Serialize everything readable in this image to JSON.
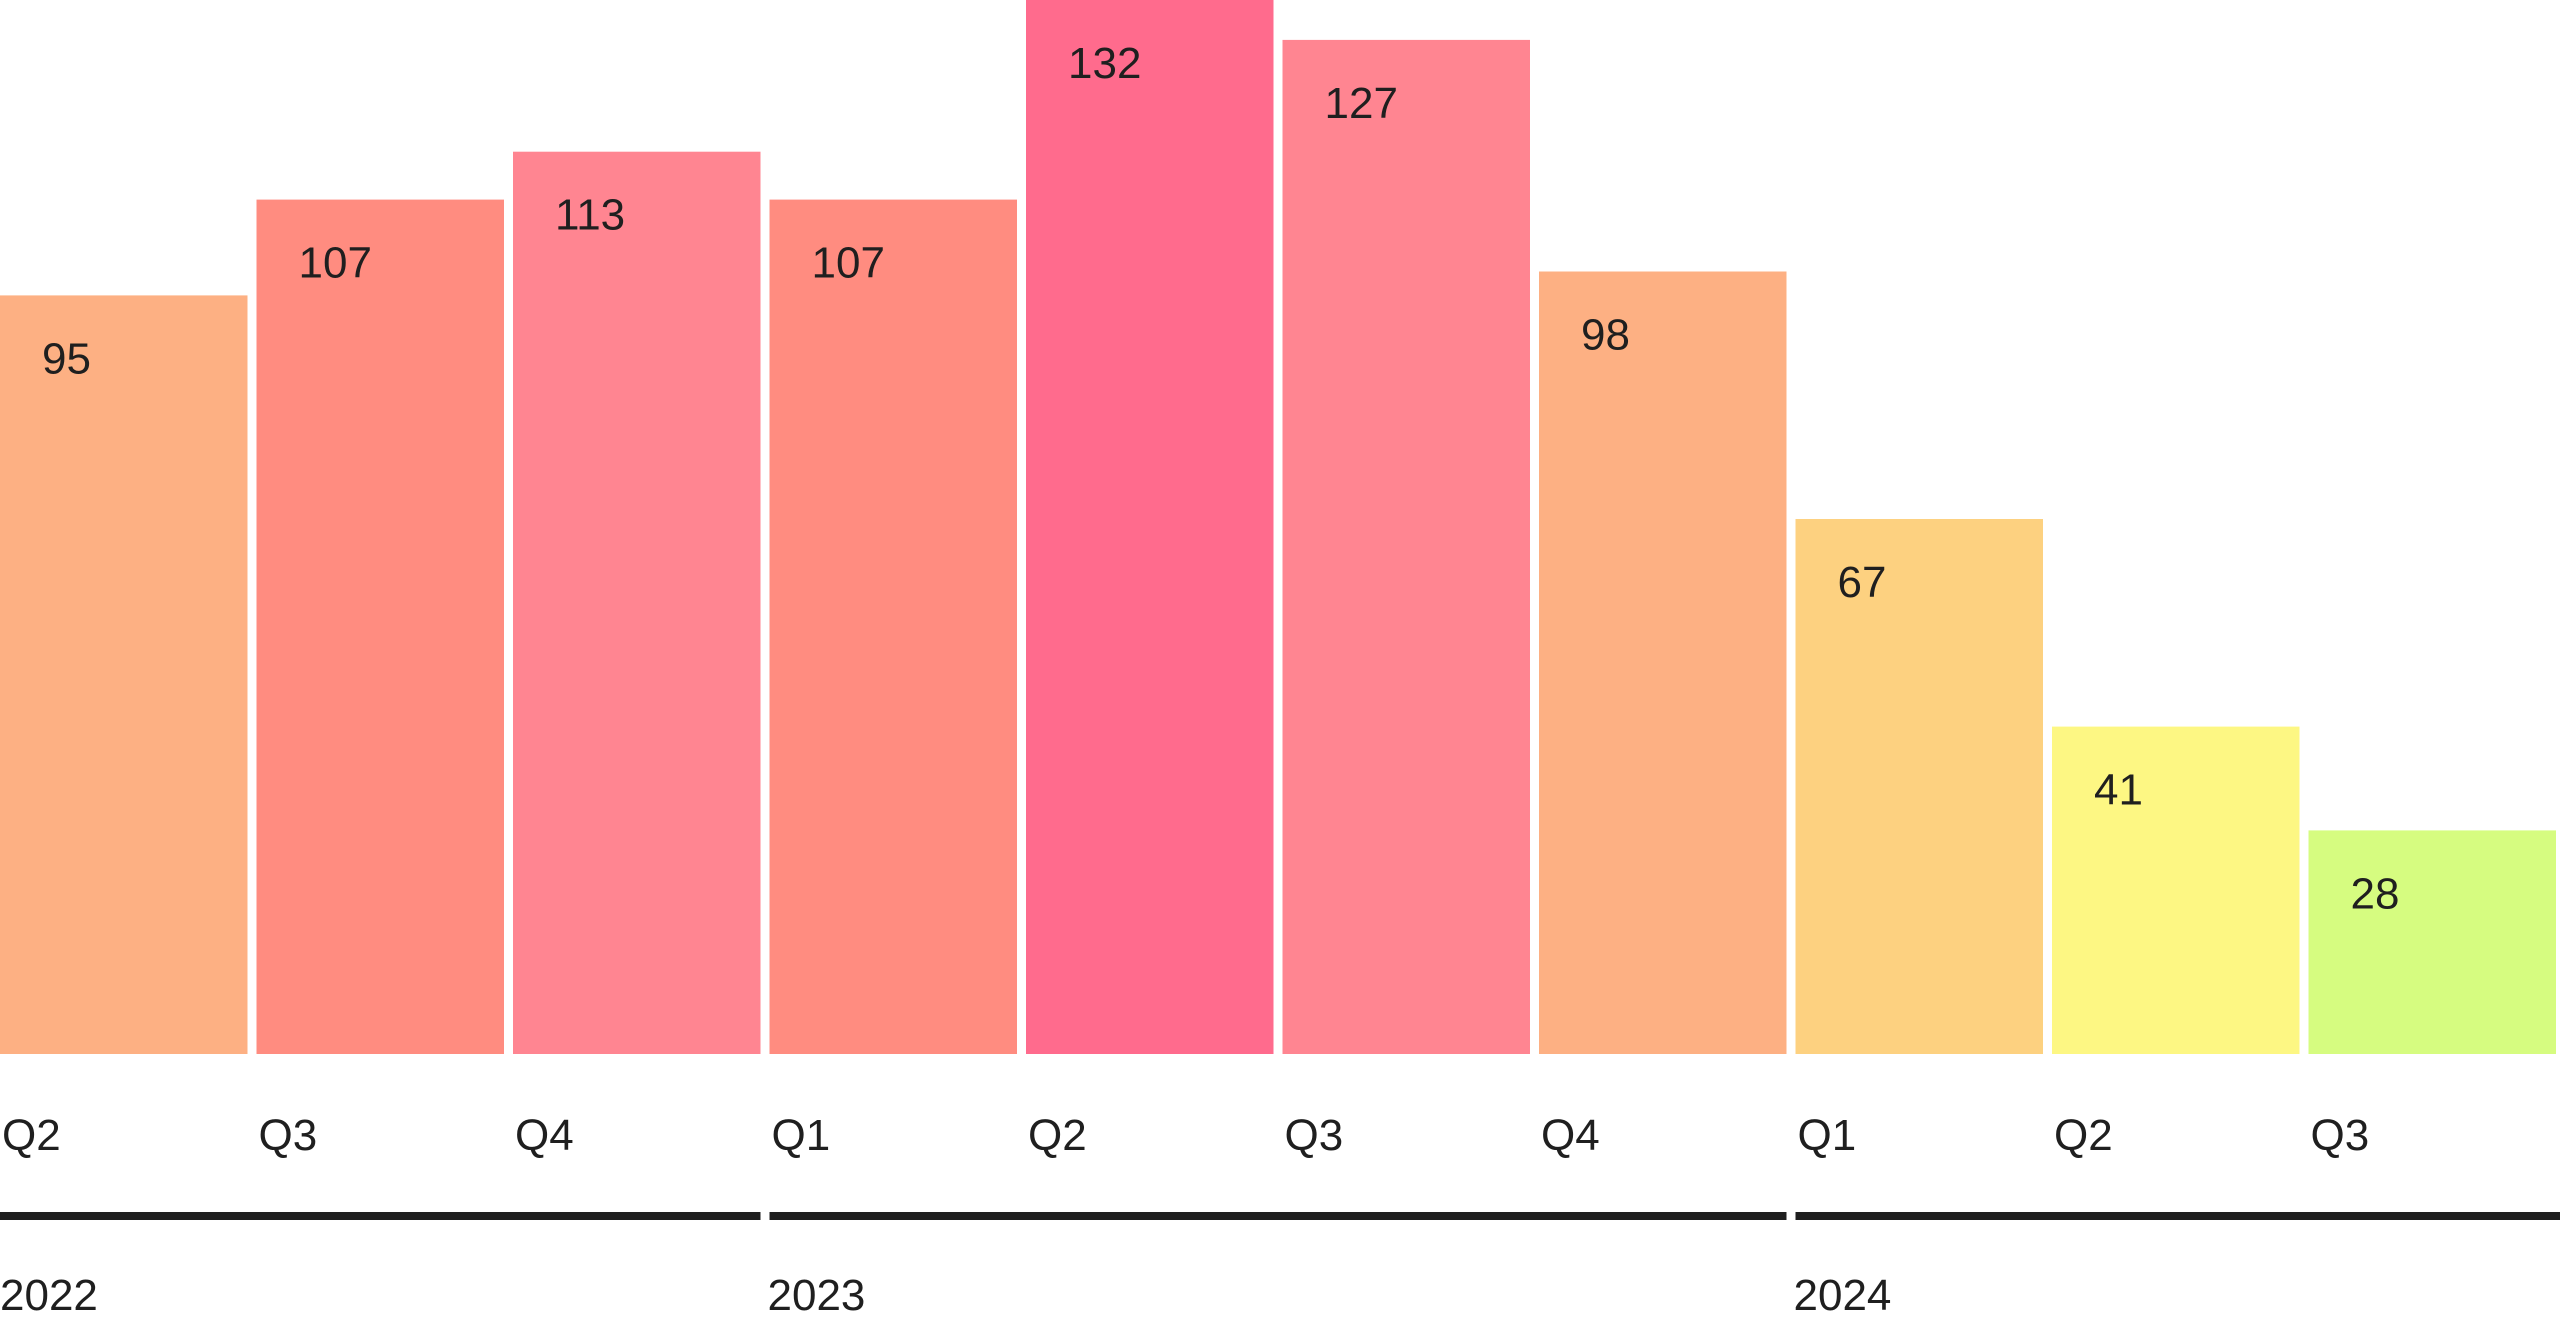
{
  "chart_data": {
    "type": "bar",
    "title": "",
    "xlabel": "",
    "ylabel": "",
    "ylim": [
      0,
      132
    ],
    "grid": false,
    "categories": [
      "Q2",
      "Q3",
      "Q4",
      "Q1",
      "Q2",
      "Q3",
      "Q4",
      "Q1",
      "Q2",
      "Q3"
    ],
    "values": [
      95,
      107,
      113,
      107,
      132,
      127,
      98,
      67,
      41,
      28
    ],
    "value_labels": [
      "95",
      "107",
      "113",
      "107",
      "132",
      "127",
      "98",
      "67",
      "41",
      "28"
    ],
    "colors": [
      "#fdb083",
      "#ff8c80",
      "#ff8591",
      "#ff8c80",
      "#ff6b8d",
      "#ff8591",
      "#fdb083",
      "#fdd180",
      "#fdf783",
      "#d6fc80"
    ],
    "groups": [
      {
        "label": "2022",
        "count": 3
      },
      {
        "label": "2023",
        "count": 4
      },
      {
        "label": "2024",
        "count": 3
      }
    ]
  }
}
